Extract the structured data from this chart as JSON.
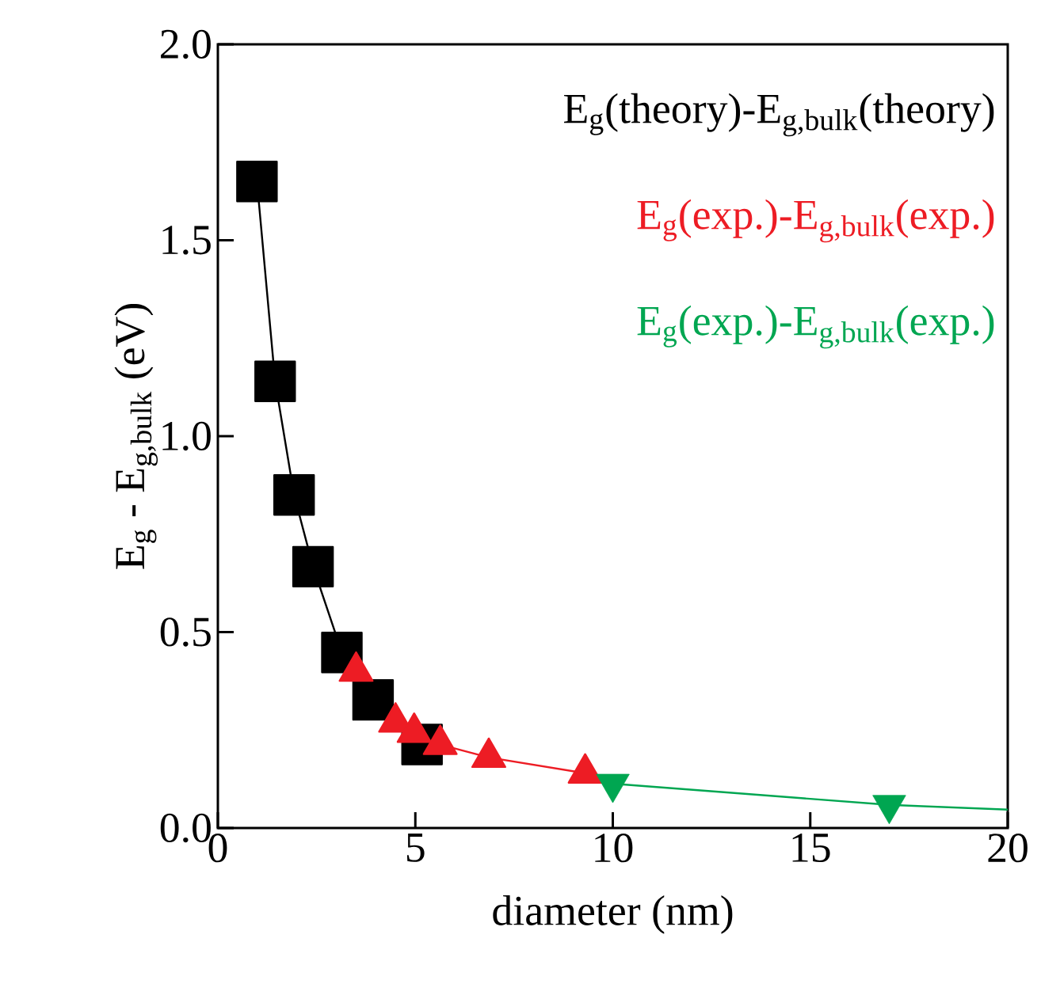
{
  "chart_data": {
    "type": "line",
    "xlabel": "diameter (nm)",
    "ylabel": "E$_{g}$ - E$_{g,bulk}$ (eV)",
    "xlim": [
      0,
      20
    ],
    "xticks": [
      0,
      5,
      10,
      15,
      20
    ],
    "ylim": [
      0,
      2
    ],
    "yticks": [
      {
        "value": 0,
        "label": "0.0"
      },
      0.5,
      {
        "value": 1,
        "label": "1.0"
      },
      1.5,
      {
        "value": 2,
        "label": "2.0"
      }
    ],
    "grid": false,
    "legend": "top right",
    "series": [
      {
        "name": "E$_{g}$(theory)-E$_{g,bulk}$(theory)",
        "color": "#000000",
        "marker": "square",
        "x": [
          0.99,
          1.45,
          1.93,
          2.41,
          3.14,
          3.93,
          5.17
        ],
        "values": [
          1.65,
          1.14,
          0.85,
          0.667,
          0.448,
          0.327,
          0.213
        ]
      },
      {
        "name": "E$_{g}$(exp.)-E$_{g,bulk}$(exp.)",
        "color": "#ed1c24",
        "marker": "triangle",
        "x": [
          3.5,
          4.5,
          4.97,
          5.63,
          6.86,
          9.3
        ],
        "values": [
          0.4,
          0.27,
          0.244,
          0.213,
          0.18,
          0.14
        ]
      },
      {
        "name": "E$_{g}$(exp.)-E$_{g,bulk}$(exp.)",
        "color": "#00a651",
        "type": "scatter",
        "marker": "triangle-down",
        "x": [
          10.0,
          17.0
        ],
        "values": [
          0.113,
          0.059
        ]
      },
      {
        "color": "#00a651",
        "marker": "none",
        "x": [
          10.0,
          17.0,
          20.0
        ],
        "values": [
          0.113,
          0.059,
          0.047
        ]
      }
    ]
  }
}
